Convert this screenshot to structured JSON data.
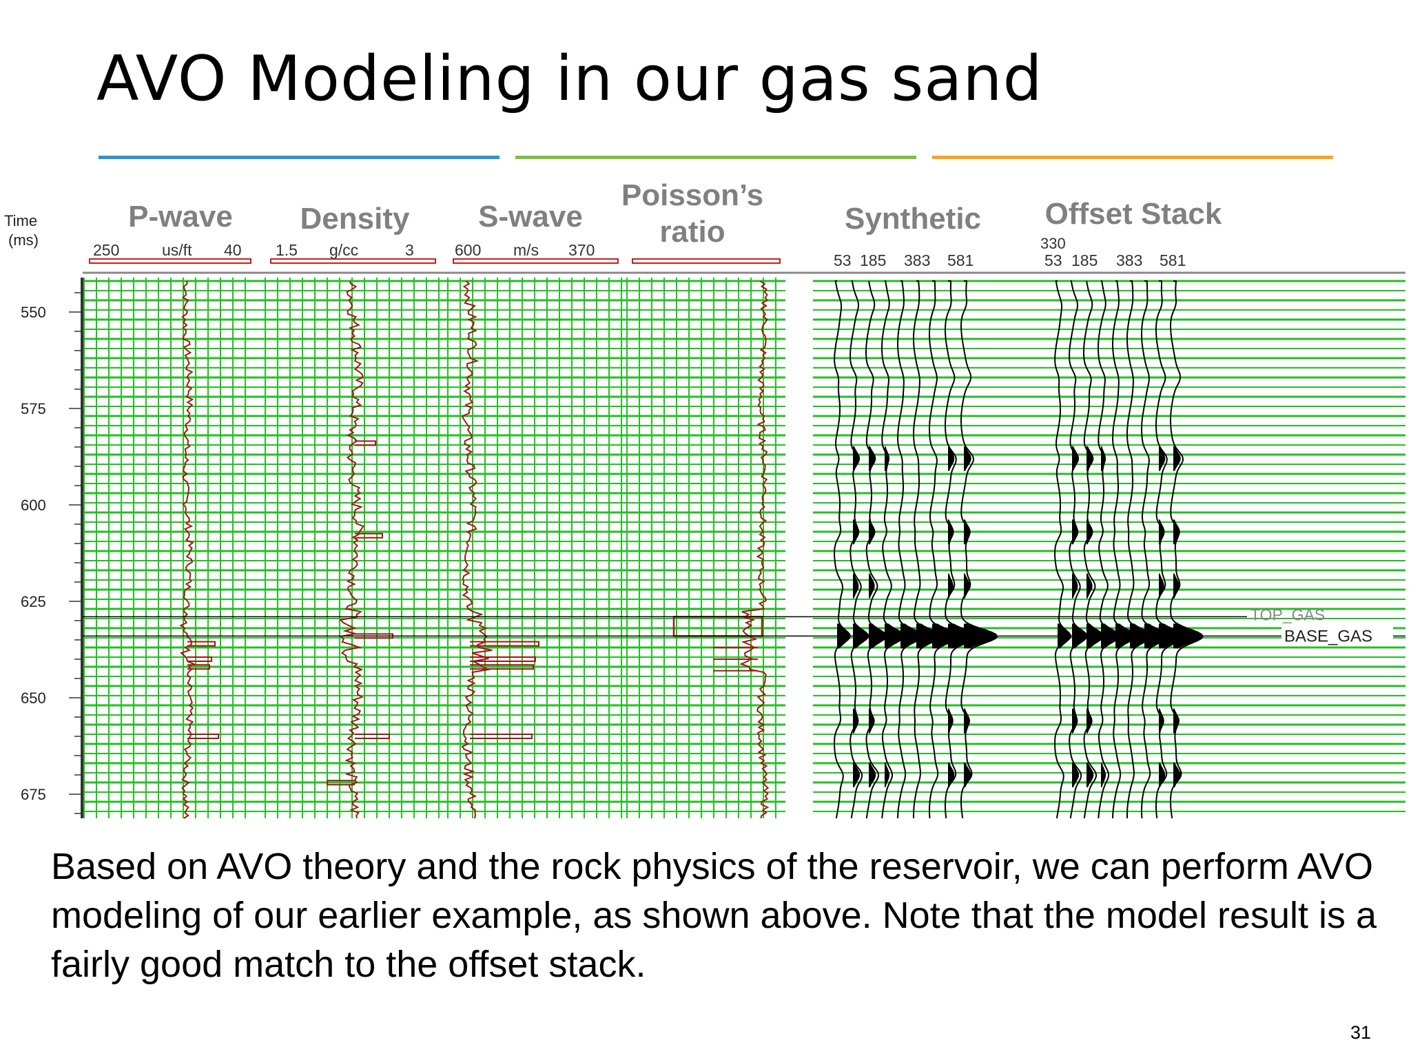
{
  "slide": {
    "title": "AVO Modeling in our gas sand",
    "accent_colors": [
      "#2b95cf",
      "#7cc045",
      "#f5a623"
    ],
    "body": "Based on AVO theory and the rock physics of the reservoir, we can perform AVO modeling of our earlier example, as shown above. Note that the model result is a fairly good match to the offset stack.",
    "page_number": "31"
  },
  "figure": {
    "time_axis": {
      "label_line1": "Time",
      "label_line2": "(ms)",
      "ticks": [
        "550",
        "575",
        "600",
        "625",
        "650",
        "675"
      ]
    },
    "columns": [
      {
        "label": "P-wave",
        "scale": [
          "250",
          "us/ft",
          "40"
        ]
      },
      {
        "label": "Density",
        "scale": [
          "1.5",
          "g/cc",
          "3"
        ]
      },
      {
        "label": "S-wave",
        "scale": [
          "600",
          "m/s",
          "370"
        ]
      },
      {
        "label_line1": "Poisson’s",
        "label_line2": "ratio",
        "scale": [
          "",
          "",
          ""
        ]
      },
      {
        "label": "Synthetic",
        "offsets": [
          "53",
          "185",
          "383",
          "581"
        ]
      },
      {
        "label": "Offset Stack",
        "top_value": "330",
        "offsets": [
          "53",
          "185",
          "383",
          "581"
        ]
      }
    ],
    "horizons": {
      "top": "TOP_GAS",
      "base": "BASE_GAS"
    },
    "colors": {
      "grid": "#22c022",
      "log_trace": "#a01616",
      "panel_border": "#c02020",
      "horizon": "#000000"
    }
  }
}
